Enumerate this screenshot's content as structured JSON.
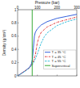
{
  "chart_data": {
    "type": "line",
    "x_label": "Pressure (bar)",
    "y_label": "Density (g/cm³)",
    "xlim": [
      0,
      300
    ],
    "xticks": [
      0,
      100,
      200,
      300
    ],
    "ylim": [
      0,
      1
    ],
    "yticks": [
      0,
      0.2,
      0.4,
      0.6,
      0.8,
      1
    ],
    "legend": "lower right",
    "series": [
      {
        "name": "T = 35 °C",
        "color": "#1f4fd8",
        "line_style": "solid",
        "x": [
          1,
          20,
          40,
          60,
          70,
          75,
          80,
          85,
          90,
          100,
          120,
          150,
          200,
          250,
          300
        ],
        "values": [
          0.002,
          0.04,
          0.08,
          0.13,
          0.18,
          0.25,
          0.42,
          0.6,
          0.66,
          0.71,
          0.77,
          0.82,
          0.87,
          0.9,
          0.93
        ]
      },
      {
        "name": "T = 45 °C",
        "color": "#e02020",
        "line_style": "dashdot",
        "x": [
          1,
          20,
          40,
          60,
          70,
          80,
          90,
          100,
          110,
          120,
          150,
          200,
          250,
          300
        ],
        "values": [
          0.002,
          0.04,
          0.08,
          0.12,
          0.16,
          0.22,
          0.32,
          0.5,
          0.6,
          0.66,
          0.74,
          0.81,
          0.85,
          0.89
        ]
      },
      {
        "name": "T = 55 °C",
        "color": "#22b8d8",
        "line_style": "dashed",
        "x": [
          1,
          20,
          40,
          60,
          80,
          100,
          110,
          120,
          135,
          150,
          200,
          250,
          300
        ],
        "values": [
          0.002,
          0.035,
          0.075,
          0.12,
          0.19,
          0.33,
          0.42,
          0.5,
          0.59,
          0.65,
          0.76,
          0.82,
          0.86
        ]
      },
      {
        "name": "Supercritical",
        "color": "#20a020",
        "line_style": "solid",
        "x": [
          74,
          74
        ],
        "values": [
          0,
          1
        ]
      }
    ]
  }
}
